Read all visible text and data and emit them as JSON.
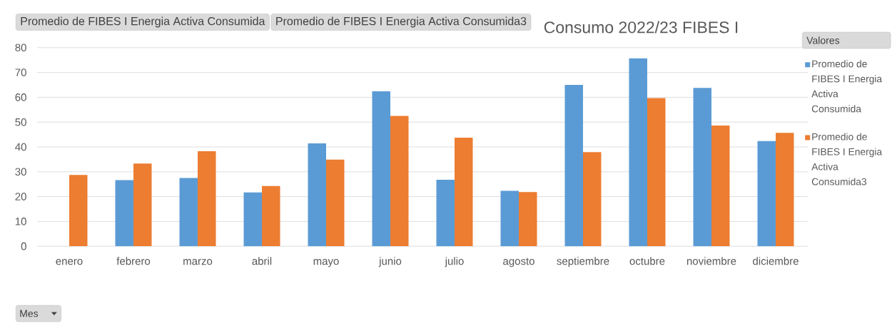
{
  "chart_data": {
    "type": "bar",
    "title": "Consumo 2022/23 FIBES I",
    "xlabel": "Mes",
    "legend_title": "Valores",
    "annotations": [
      "Promedio de FIBES I Energia Activa Consumida",
      "Promedio de FIBES I Energia Activa Consumida3"
    ],
    "categories": [
      "enero",
      "febrero",
      "marzo",
      "abril",
      "mayo",
      "junio",
      "julio",
      "agosto",
      "septiembre",
      "octubre",
      "noviembre",
      "diciembre"
    ],
    "series": [
      {
        "name": "Promedio de FIBES I Energia Activa Consumida",
        "color": "#5b9bd5",
        "values": [
          null,
          26.6,
          27.5,
          21.7,
          41.4,
          62.4,
          26.8,
          22.3,
          65.0,
          75.7,
          63.8,
          42.4
        ]
      },
      {
        "name": "Promedio de FIBES I Energia Activa Consumida3",
        "color": "#ed7d31",
        "values": [
          28.7,
          33.3,
          38.3,
          24.3,
          34.9,
          52.5,
          43.7,
          21.8,
          37.9,
          59.7,
          48.6,
          45.7
        ]
      }
    ],
    "ylim": [
      0,
      80
    ],
    "yticks": [
      0,
      10,
      20,
      30,
      40,
      50,
      60,
      70,
      80
    ],
    "grid": "y",
    "legend": "right"
  }
}
